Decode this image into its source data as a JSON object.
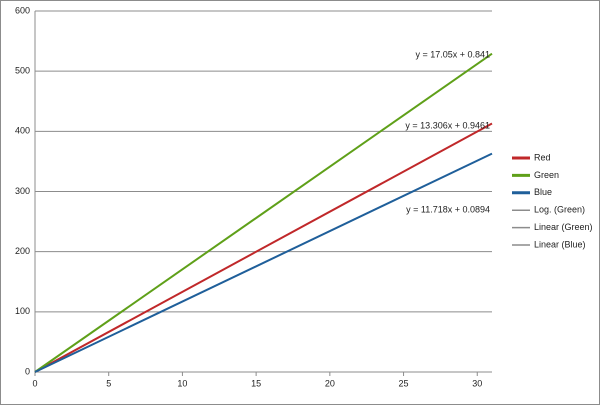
{
  "chart_data": {
    "type": "line",
    "x": [
      0,
      31
    ],
    "series": [
      {
        "name": "Red",
        "color": "#c0282a",
        "values": [
          0,
          413
        ]
      },
      {
        "name": "Green",
        "color": "#5fa019",
        "values": [
          0,
          529
        ]
      },
      {
        "name": "Blue",
        "color": "#1f5f9a",
        "values": [
          0,
          363
        ]
      }
    ],
    "trendlines": [
      {
        "name": "Log. (Green)",
        "color": "#8c8c8c"
      },
      {
        "name": "Linear (Green)",
        "color": "#8c8c8c"
      },
      {
        "name": "Linear (Blue)",
        "color": "#8c8c8c"
      }
    ],
    "annotations": [
      "y = 17.05x + 0.841",
      "y = 13.306x + 0.9461",
      "y = 11.718x + 0.0894"
    ],
    "xlim": [
      0,
      31
    ],
    "xticks": [
      0,
      5,
      10,
      15,
      20,
      25,
      30
    ],
    "ylim": [
      0,
      600
    ],
    "yticks": [
      0,
      100,
      200,
      300,
      400,
      500,
      600
    ],
    "grid": true,
    "legend": "right"
  }
}
